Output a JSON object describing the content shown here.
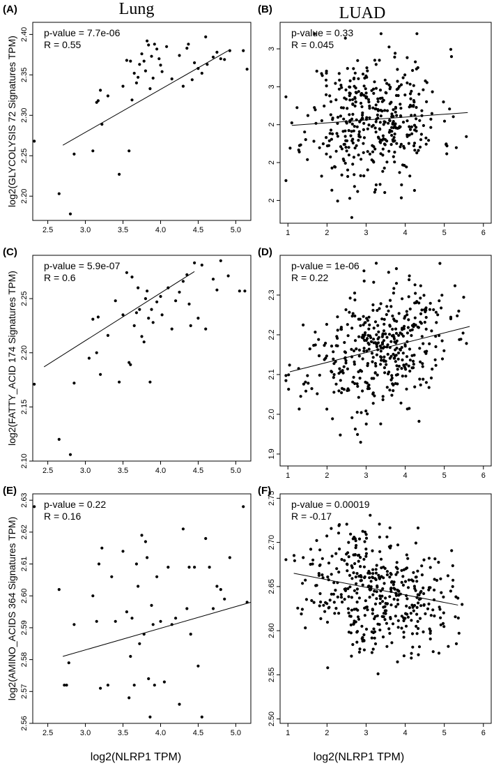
{
  "column_titles": [
    "Lung",
    "LUAD"
  ],
  "xlabel": "log2(NLRP1 TPM)",
  "chart_data": [
    {
      "panel": "(A)",
      "type": "scatter",
      "ylabel": "log2(GLYCOLYSIS 72 Signatures TPM)",
      "stats": [
        "p-value = 7.7e-06",
        "R = 0.55"
      ],
      "xlim": [
        2.3,
        5.2
      ],
      "ylim": [
        2.17,
        2.415
      ],
      "xticks": [
        2.5,
        3.0,
        3.5,
        4.0,
        4.5,
        5.0
      ],
      "yticks": [
        2.2,
        2.25,
        2.3,
        2.35,
        2.4
      ],
      "fit": [
        [
          2.7,
          2.263
        ],
        [
          4.9,
          2.38
        ]
      ],
      "points": [
        [
          2.32,
          2.268
        ],
        [
          2.65,
          2.203
        ],
        [
          2.8,
          2.178
        ],
        [
          2.85,
          2.252
        ],
        [
          3.1,
          2.256
        ],
        [
          3.15,
          2.316
        ],
        [
          3.17,
          2.318
        ],
        [
          3.2,
          2.331
        ],
        [
          3.22,
          2.289
        ],
        [
          3.3,
          2.324
        ],
        [
          3.45,
          2.227
        ],
        [
          3.5,
          2.336
        ],
        [
          3.55,
          2.368
        ],
        [
          3.58,
          2.256
        ],
        [
          3.6,
          2.367
        ],
        [
          3.62,
          2.319
        ],
        [
          3.65,
          2.352
        ],
        [
          3.68,
          2.34
        ],
        [
          3.7,
          2.347
        ],
        [
          3.72,
          2.363
        ],
        [
          3.75,
          2.376
        ],
        [
          3.78,
          2.367
        ],
        [
          3.8,
          2.355
        ],
        [
          3.82,
          2.392
        ],
        [
          3.84,
          2.387
        ],
        [
          3.86,
          2.333
        ],
        [
          3.88,
          2.373
        ],
        [
          3.9,
          2.346
        ],
        [
          3.92,
          2.388
        ],
        [
          3.95,
          2.382
        ],
        [
          3.98,
          2.37
        ],
        [
          4.0,
          2.362
        ],
        [
          4.02,
          2.354
        ],
        [
          4.08,
          2.385
        ],
        [
          4.15,
          2.345
        ],
        [
          4.25,
          2.374
        ],
        [
          4.3,
          2.336
        ],
        [
          4.35,
          2.383
        ],
        [
          4.37,
          2.388
        ],
        [
          4.42,
          2.344
        ],
        [
          4.45,
          2.365
        ],
        [
          4.5,
          2.358
        ],
        [
          4.55,
          2.352
        ],
        [
          4.6,
          2.397
        ],
        [
          4.62,
          2.363
        ],
        [
          4.7,
          2.372
        ],
        [
          4.75,
          2.378
        ],
        [
          4.8,
          2.37
        ],
        [
          4.85,
          2.369
        ],
        [
          4.92,
          2.38
        ],
        [
          5.1,
          2.38
        ],
        [
          5.15,
          2.357
        ]
      ]
    },
    {
      "panel": "(B)",
      "type": "scatter",
      "stats": [
        "p-value = 0.33",
        "R = 0.045"
      ],
      "xlim": [
        0.8,
        6.2
      ],
      "ylim": [
        2.14,
        2.67
      ],
      "xticks": [
        1,
        2,
        3,
        4,
        5,
        6
      ],
      "yticks": [
        2.2,
        2.3,
        2.4,
        2.5,
        2.6
      ],
      "fit": [
        [
          1.1,
          2.398
        ],
        [
          5.6,
          2.432
        ]
      ],
      "cloud": {
        "n": 420,
        "seed": 11,
        "xmean": 3.2,
        "xsd": 0.85,
        "xmin": 0.95,
        "xmax": 6.0,
        "intercept": 2.391,
        "slope": 0.0075,
        "ysd": 0.085,
        "ymin": 2.15,
        "ymax": 2.64
      }
    },
    {
      "panel": "(C)",
      "type": "scatter",
      "ylabel": "log2(FATTY_ACID 174 Signatures TPM)",
      "stats": [
        "p-value = 5.9e-07",
        "R = 0.6"
      ],
      "xlim": [
        2.3,
        5.2
      ],
      "ylim": [
        2.1,
        2.29
      ],
      "xticks": [
        2.5,
        3.0,
        3.5,
        4.0,
        4.5,
        5.0
      ],
      "yticks": [
        2.1,
        2.15,
        2.2,
        2.25
      ],
      "fit": [
        [
          2.45,
          2.187
        ],
        [
          4.45,
          2.275
        ]
      ],
      "points": [
        [
          2.32,
          2.171
        ],
        [
          2.65,
          2.12
        ],
        [
          2.8,
          2.106
        ],
        [
          2.85,
          2.172
        ],
        [
          3.05,
          2.195
        ],
        [
          3.1,
          2.231
        ],
        [
          3.15,
          2.2
        ],
        [
          3.17,
          2.233
        ],
        [
          3.2,
          2.18
        ],
        [
          3.3,
          2.216
        ],
        [
          3.4,
          2.248
        ],
        [
          3.45,
          2.173
        ],
        [
          3.5,
          2.235
        ],
        [
          3.55,
          2.274
        ],
        [
          3.58,
          2.191
        ],
        [
          3.6,
          2.189
        ],
        [
          3.62,
          2.27
        ],
        [
          3.65,
          2.225
        ],
        [
          3.68,
          2.237
        ],
        [
          3.7,
          2.26
        ],
        [
          3.72,
          2.24
        ],
        [
          3.75,
          2.215
        ],
        [
          3.78,
          2.21
        ],
        [
          3.8,
          2.25
        ],
        [
          3.82,
          2.257
        ],
        [
          3.84,
          2.232
        ],
        [
          3.86,
          2.173
        ],
        [
          3.88,
          2.24
        ],
        [
          3.9,
          2.228
        ],
        [
          3.95,
          2.247
        ],
        [
          4.0,
          2.252
        ],
        [
          4.02,
          2.235
        ],
        [
          4.1,
          2.26
        ],
        [
          4.15,
          2.222
        ],
        [
          4.2,
          2.248
        ],
        [
          4.25,
          2.256
        ],
        [
          4.3,
          2.266
        ],
        [
          4.35,
          2.272
        ],
        [
          4.38,
          2.245
        ],
        [
          4.4,
          2.225
        ],
        [
          4.45,
          2.283
        ],
        [
          4.5,
          2.232
        ],
        [
          4.55,
          2.281
        ],
        [
          4.6,
          2.222
        ],
        [
          4.7,
          2.268
        ],
        [
          4.75,
          2.258
        ],
        [
          4.8,
          2.285
        ],
        [
          4.9,
          2.271
        ],
        [
          5.05,
          2.257
        ],
        [
          5.12,
          2.257
        ]
      ]
    },
    {
      "panel": "(D)",
      "type": "scatter",
      "stats": [
        "p-value = 1e-06",
        "R = 0.22"
      ],
      "xlim": [
        0.8,
        6.2
      ],
      "ylim": [
        1.87,
        2.4
      ],
      "xticks": [
        1,
        2,
        3,
        4,
        5,
        6
      ],
      "yticks": [
        1.9,
        2.0,
        2.1,
        2.2,
        2.3
      ],
      "fit": [
        [
          1.05,
          2.107
        ],
        [
          5.65,
          2.221
        ]
      ],
      "cloud": {
        "n": 420,
        "seed": 23,
        "xmean": 3.3,
        "xsd": 0.9,
        "xmin": 0.95,
        "xmax": 6.0,
        "intercept": 2.081,
        "slope": 0.0248,
        "ysd": 0.075,
        "ymin": 1.89,
        "ymax": 2.38
      }
    },
    {
      "panel": "(E)",
      "type": "scatter",
      "ylabel": "log2(AMINO_ACIDS 364 Signatures TPM)",
      "stats": [
        "p-value = 0.22",
        "R = 0.16"
      ],
      "xlim": [
        2.3,
        5.2
      ],
      "ylim": [
        2.56,
        2.632
      ],
      "xticks": [
        2.5,
        3.0,
        3.5,
        4.0,
        4.5,
        5.0
      ],
      "yticks": [
        2.56,
        2.57,
        2.58,
        2.59,
        2.6,
        2.61,
        2.62,
        2.63
      ],
      "fit": [
        [
          2.7,
          2.581
        ],
        [
          5.2,
          2.598
        ]
      ],
      "points": [
        [
          2.32,
          2.628
        ],
        [
          2.65,
          2.602
        ],
        [
          2.72,
          2.572
        ],
        [
          2.75,
          2.572
        ],
        [
          2.78,
          2.579
        ],
        [
          2.85,
          2.591
        ],
        [
          3.1,
          2.6
        ],
        [
          3.15,
          2.592
        ],
        [
          3.18,
          2.61
        ],
        [
          3.2,
          2.571
        ],
        [
          3.22,
          2.615
        ],
        [
          3.3,
          2.572
        ],
        [
          3.35,
          2.606
        ],
        [
          3.4,
          2.592
        ],
        [
          3.5,
          2.614
        ],
        [
          3.55,
          2.595
        ],
        [
          3.58,
          2.568
        ],
        [
          3.6,
          2.581
        ],
        [
          3.62,
          2.593
        ],
        [
          3.65,
          2.572
        ],
        [
          3.68,
          2.61
        ],
        [
          3.7,
          2.603
        ],
        [
          3.72,
          2.585
        ],
        [
          3.75,
          2.619
        ],
        [
          3.78,
          2.588
        ],
        [
          3.8,
          2.617
        ],
        [
          3.82,
          2.612
        ],
        [
          3.84,
          2.574
        ],
        [
          3.86,
          2.562
        ],
        [
          3.88,
          2.597
        ],
        [
          3.9,
          2.591
        ],
        [
          3.92,
          2.572
        ],
        [
          3.95,
          2.606
        ],
        [
          4.0,
          2.592
        ],
        [
          4.05,
          2.573
        ],
        [
          4.1,
          2.609
        ],
        [
          4.15,
          2.591
        ],
        [
          4.2,
          2.593
        ],
        [
          4.25,
          2.566
        ],
        [
          4.3,
          2.621
        ],
        [
          4.35,
          2.596
        ],
        [
          4.38,
          2.609
        ],
        [
          4.4,
          2.588
        ],
        [
          4.45,
          2.609
        ],
        [
          4.5,
          2.578
        ],
        [
          4.55,
          2.562
        ],
        [
          4.6,
          2.618
        ],
        [
          4.65,
          2.609
        ],
        [
          4.7,
          2.596
        ],
        [
          4.75,
          2.603
        ],
        [
          4.8,
          2.602
        ],
        [
          4.85,
          2.599
        ],
        [
          4.92,
          2.612
        ],
        [
          5.1,
          2.628
        ],
        [
          5.15,
          2.598
        ]
      ]
    },
    {
      "panel": "(F)",
      "type": "scatter",
      "stats": [
        "p-value = 0.00019",
        "R = -0.17"
      ],
      "xlim": [
        0.8,
        6.2
      ],
      "ylim": [
        2.495,
        2.755
      ],
      "xticks": [
        1,
        2,
        3,
        4,
        5,
        6
      ],
      "yticks": [
        2.5,
        2.55,
        2.6,
        2.65,
        2.7,
        2.75
      ],
      "fit": [
        [
          1.15,
          2.665
        ],
        [
          5.35,
          2.629
        ]
      ],
      "cloud": {
        "n": 430,
        "seed": 37,
        "xmean": 3.3,
        "xsd": 0.9,
        "xmin": 0.95,
        "xmax": 6.0,
        "intercept": 2.6749,
        "slope": -0.0086,
        "ysd": 0.034,
        "ymin": 2.505,
        "ymax": 2.745
      }
    }
  ]
}
